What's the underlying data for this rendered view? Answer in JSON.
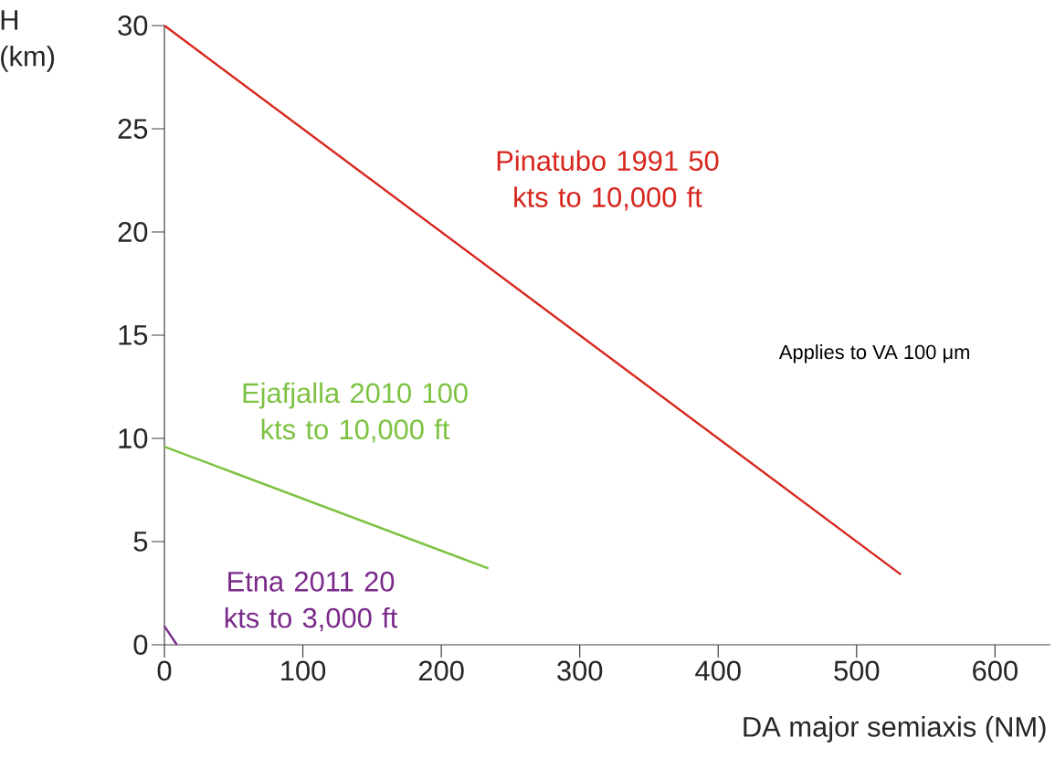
{
  "chart_data": {
    "type": "line",
    "xlabel": "DA major semiaxis (NM)",
    "ylabel": "H (km)",
    "xlim": [
      0,
      640
    ],
    "ylim": [
      0,
      30
    ],
    "xticks": [
      0,
      100,
      200,
      300,
      400,
      500,
      600
    ],
    "yticks": [
      0,
      5,
      10,
      15,
      20,
      25,
      30
    ],
    "grid": false,
    "legend": false,
    "marker": "none",
    "line_style": "solid",
    "series": [
      {
        "name": "Pinatubo 1991 50 kts to 10,000 ft",
        "color": "#d7261e",
        "x": [
          0,
          532
        ],
        "values": [
          30,
          3.4
        ]
      },
      {
        "name": "Ejafjalla 2010 100 kts to 10,000 ft",
        "color": "#7dc242",
        "x": [
          0,
          234
        ],
        "values": [
          9.6,
          3.7
        ]
      },
      {
        "name": "Etna 2011 20 kts to 3,000 ft",
        "color": "#7a2a8a",
        "x": [
          0,
          9
        ],
        "values": [
          0.9,
          0
        ]
      }
    ],
    "annotations": [
      "Applies to VA 100 μm"
    ]
  }
}
